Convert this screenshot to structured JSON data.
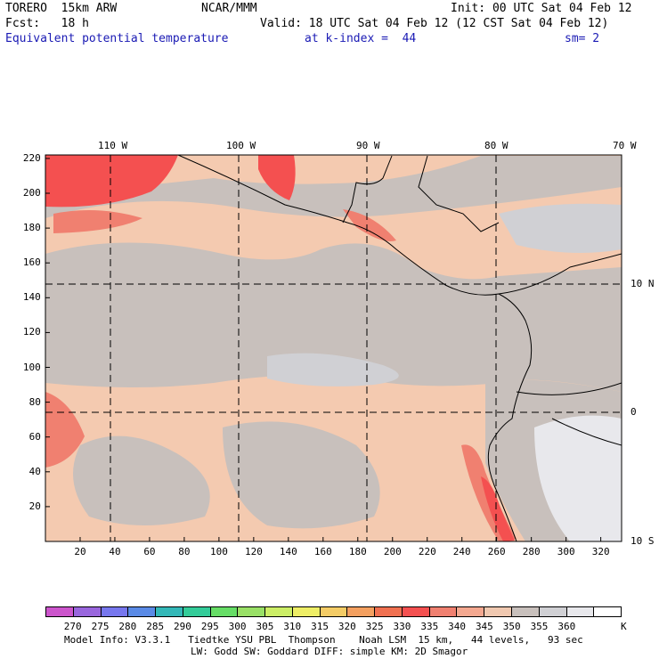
{
  "header": {
    "model": "TORERO  15km ARW",
    "center": "NCAR/MMM",
    "init": "Init: 00 UTC Sat 04 Feb 12",
    "fcst": "Fcst:   18 h",
    "valid": "Valid: 18 UTC Sat 04 Feb 12 (12 CST Sat 04 Feb 12)",
    "field": "Equivalent potential temperature",
    "level": "at k-index =  44",
    "smooth": "sm= 2"
  },
  "map": {
    "lon_labels": [
      "110 W",
      "100 W",
      "90 W",
      "80 W",
      "70 W"
    ],
    "lat_labels": [
      "10 N",
      "0",
      "10 S"
    ],
    "x_ticks": [
      "20",
      "40",
      "60",
      "80",
      "100",
      "120",
      "140",
      "160",
      "180",
      "200",
      "220",
      "240",
      "260",
      "280",
      "300",
      "320"
    ],
    "y_ticks": [
      "220",
      "200",
      "180",
      "160",
      "140",
      "120",
      "100",
      "80",
      "60",
      "40",
      "20"
    ],
    "x_range": [
      0,
      332
    ],
    "y_range": [
      0,
      222
    ]
  },
  "colorbar": {
    "labels": [
      "270",
      "275",
      "280",
      "285",
      "290",
      "295",
      "300",
      "305",
      "310",
      "315",
      "320",
      "325",
      "330",
      "335",
      "340",
      "345",
      "350",
      "355",
      "360"
    ],
    "unit": "K",
    "colors": [
      "#cc55cc",
      "#9966dd",
      "#7777ee",
      "#5a8ae6",
      "#33b8b8",
      "#33cc99",
      "#66dd66",
      "#99e066",
      "#ccee66",
      "#eeee66",
      "#f4cc66",
      "#f4a060",
      "#f07050",
      "#f45050",
      "#f08070",
      "#f4a890",
      "#f0c8b0",
      "#c8c0bc",
      "#d0d0d4",
      "#e8e8ec",
      "#ffffff"
    ]
  },
  "footer": {
    "line1": "Model Info: V3.3.1   Tiedtke YSU PBL  Thompson    Noah LSM  15 km,   44 levels,   93 sec",
    "line2": "LW: Godd SW: Goddard DIFF: simple KM: 2D Smagor"
  }
}
